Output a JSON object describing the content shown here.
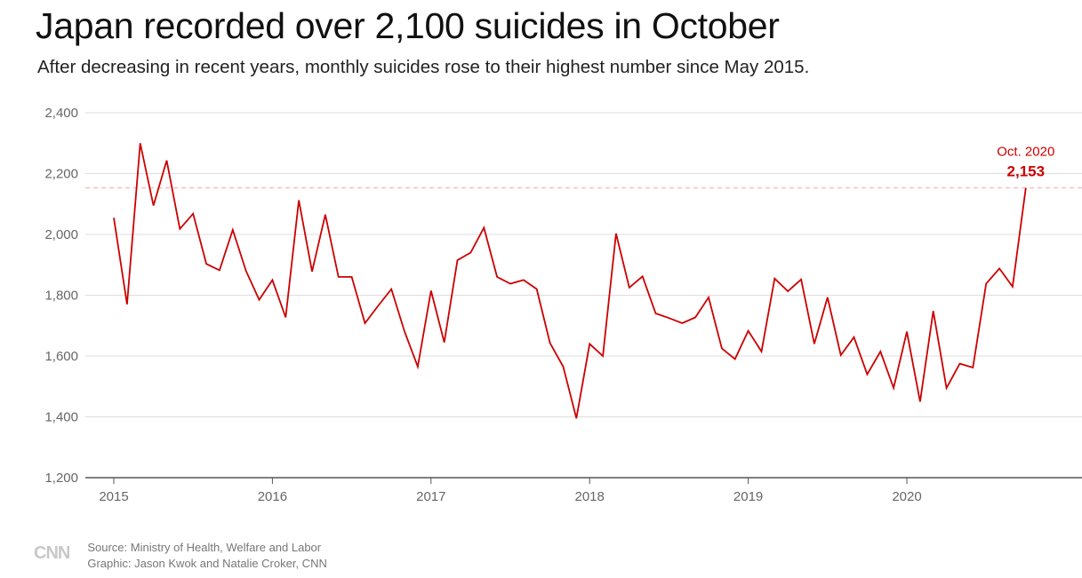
{
  "header": {
    "title": "Japan recorded over 2,100 suicides in October",
    "subtitle": "After decreasing in recent years, monthly suicides rose to their highest number since May 2015."
  },
  "colors": {
    "line": "#cc0000",
    "grid": "#dddddd",
    "reference": "#f4b8b8",
    "axis": "#555555"
  },
  "chart_data": {
    "type": "line",
    "title": "Japan recorded over 2,100 suicides in October",
    "xlabel": "",
    "ylabel": "",
    "ylim": [
      1200,
      2400
    ],
    "y_ticks": [
      1200,
      1400,
      1600,
      1800,
      2000,
      2200,
      2400
    ],
    "y_tick_labels": [
      "1,200",
      "1,400",
      "1,600",
      "1,800",
      "2,000",
      "2,200",
      "2,400"
    ],
    "x_ticks": [
      "2015",
      "2016",
      "2017",
      "2018",
      "2019",
      "2020"
    ],
    "grid": true,
    "series": [
      {
        "name": "Monthly suicides",
        "start": "2015-01",
        "values": [
          2055,
          1770,
          2300,
          2095,
          2243,
          2018,
          2068,
          1903,
          1882,
          2015,
          1880,
          1785,
          1850,
          1727,
          2112,
          1878,
          2065,
          1860,
          1860,
          1708,
          1765,
          1820,
          1680,
          1565,
          1815,
          1645,
          1915,
          1940,
          2022,
          1860,
          1838,
          1850,
          1820,
          1643,
          1565,
          1395,
          1640,
          1600,
          2003,
          1825,
          1862,
          1740,
          1725,
          1708,
          1727,
          1793,
          1625,
          1590,
          1683,
          1615,
          1855,
          1813,
          1852,
          1640,
          1793,
          1603,
          1662,
          1540,
          1615,
          1495,
          1680,
          1450,
          1748,
          1495,
          1575,
          1562,
          1838,
          1888,
          1828,
          2153
        ]
      }
    ],
    "annotation": {
      "label": "Oct. 2020",
      "value": 2153,
      "value_label": "2,153"
    }
  },
  "footer": {
    "logo": "CNN",
    "source": "Source: Ministry of Health, Welfare and Labor",
    "graphic": "Graphic: Jason Kwok and Natalie Croker, CNN"
  }
}
